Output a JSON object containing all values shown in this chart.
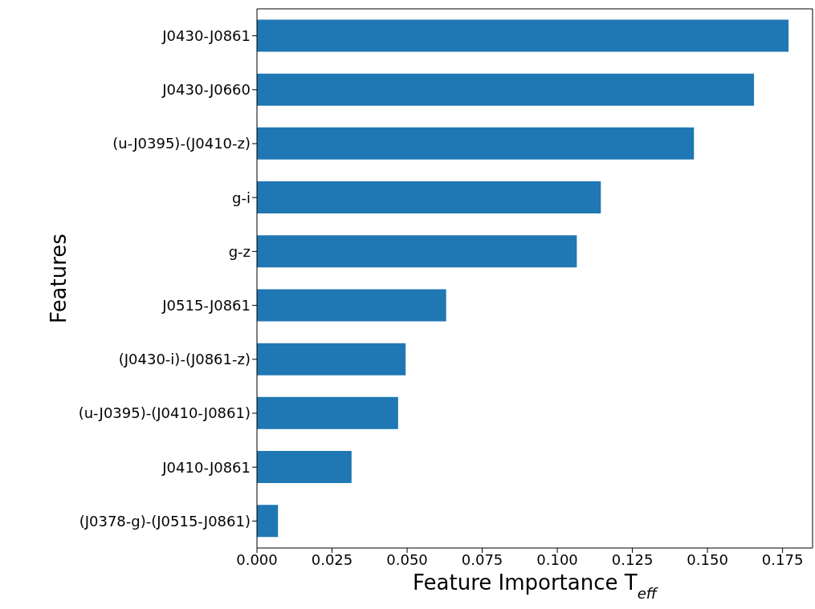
{
  "chart_data": {
    "type": "bar",
    "orientation": "horizontal",
    "xlabel": "Feature Importance T$_{eff}$",
    "ylabel": "Features",
    "categories": [
      "J0430-J0861",
      "J0430-J0660",
      "(u-J0395)-(J0410-z)",
      "g-i",
      "g-z",
      "J0515-J0861",
      "(J0430-i)-(J0861-z)",
      "(u-J0395)-(J0410-J0861)",
      "J0410-J0861",
      "(J0378-g)-(J0515-J0861)"
    ],
    "values": [
      0.177,
      0.1655,
      0.1455,
      0.1145,
      0.1065,
      0.063,
      0.0495,
      0.047,
      0.0315,
      0.007
    ],
    "color": "#1f77b4",
    "xlim": [
      0,
      0.185
    ],
    "xticks": [
      {
        "value": 0,
        "label": "0.000"
      },
      {
        "value": 0.025,
        "label": "0.025"
      },
      {
        "value": 0.05,
        "label": "0.050"
      },
      {
        "value": 0.075,
        "label": "0.075"
      },
      {
        "value": 0.1,
        "label": "0.100"
      },
      {
        "value": 0.125,
        "label": "0.125"
      },
      {
        "value": 0.15,
        "label": "0.150"
      },
      {
        "value": 0.175,
        "label": "0.175"
      }
    ],
    "grid": false,
    "legend": false
  }
}
